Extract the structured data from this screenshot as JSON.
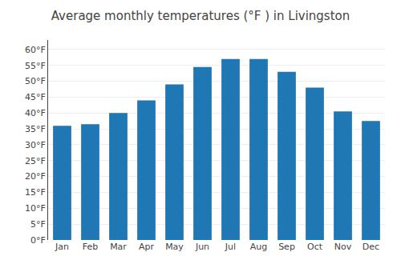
{
  "chart_data": {
    "type": "bar",
    "title": "Average monthly temperatures (°F ) in Livingston",
    "categories": [
      "Jan",
      "Feb",
      "Mar",
      "Apr",
      "May",
      "Jun",
      "Jul",
      "Aug",
      "Sep",
      "Oct",
      "Nov",
      "Dec"
    ],
    "values": [
      36,
      36.5,
      40,
      44,
      49,
      54.5,
      57,
      57,
      53,
      48,
      40.5,
      37.5
    ],
    "ylim": [
      0,
      63
    ],
    "yticks": [
      {
        "value": 0,
        "label": "0°F"
      },
      {
        "value": 5,
        "label": "5°F"
      },
      {
        "value": 10,
        "label": "10°F"
      },
      {
        "value": 15,
        "label": "15°F"
      },
      {
        "value": 20,
        "label": "20°F"
      },
      {
        "value": 25,
        "label": "25°F"
      },
      {
        "value": 30,
        "label": "30°F"
      },
      {
        "value": 35,
        "label": "35°F"
      },
      {
        "value": 40,
        "label": "40°F"
      },
      {
        "value": 45,
        "label": "45°F"
      },
      {
        "value": 50,
        "label": "50°F"
      },
      {
        "value": 55,
        "label": "55°F"
      },
      {
        "value": 60,
        "label": "60°F"
      }
    ],
    "grid": true
  }
}
